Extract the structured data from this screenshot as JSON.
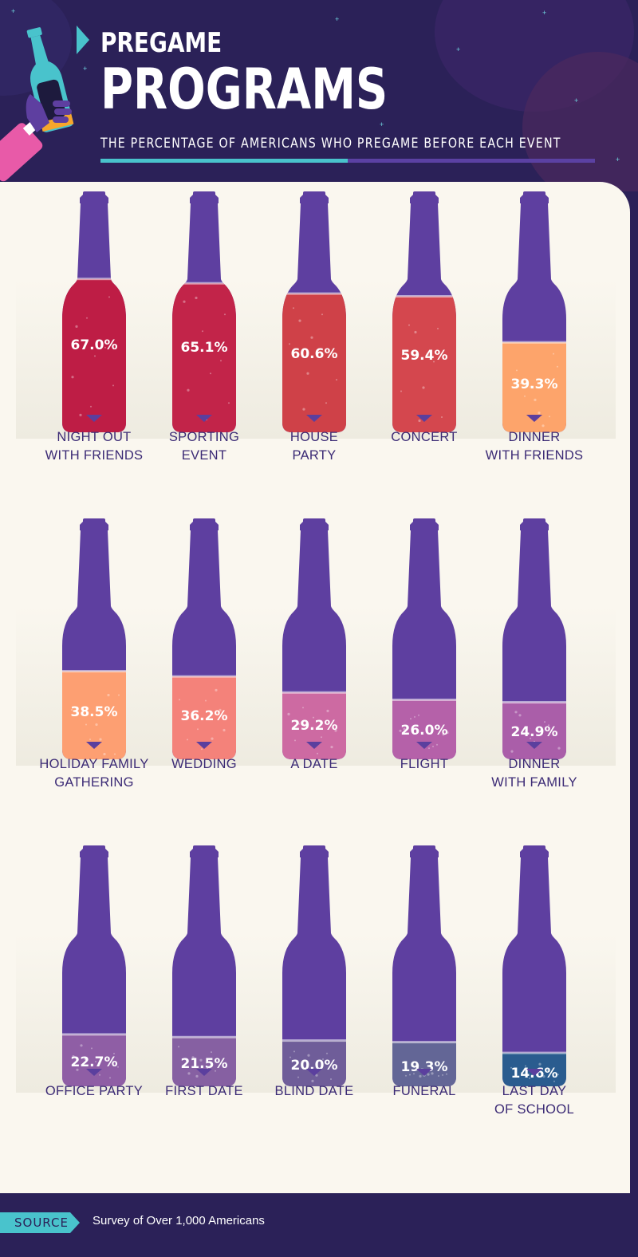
{
  "header": {
    "title_small": "PREGAME",
    "title_big": "PROGRAMS",
    "subtitle": "THE PERCENTAGE OF AMERICANS WHO PREGAME BEFORE EACH EVENT"
  },
  "colors": {
    "background": "#2b2158",
    "panel": "#faf7ef",
    "bottle": "#5e3fa0",
    "accent_teal": "#49c3cc",
    "label_text": "#3b2a75"
  },
  "chart_data": {
    "type": "bar",
    "title": "PREGAME PROGRAMS",
    "subtitle": "THE PERCENTAGE OF AMERICANS WHO PREGAME BEFORE EACH EVENT",
    "xlabel": "",
    "ylabel": "",
    "ylim": [
      0,
      100
    ],
    "categories": [
      "NIGHT OUT\nWITH FRIENDS",
      "SPORTING\nEVENT",
      "HOUSE\nPARTY",
      "CONCERT",
      "DINNER\nWITH FRIENDS",
      "HOLIDAY FAMILY\nGATHERING",
      "WEDDING",
      "A DATE",
      "FLIGHT",
      "DINNER\nWITH FAMILY",
      "OFFICE PARTY",
      "FIRST DATE",
      "BLIND DATE",
      "FUNERAL",
      "LAST DAY\nOF SCHOOL"
    ],
    "values": [
      67.0,
      65.1,
      60.6,
      59.4,
      39.3,
      38.5,
      36.2,
      29.2,
      26.0,
      24.9,
      22.7,
      21.5,
      20.0,
      19.3,
      14.6
    ],
    "value_labels": [
      "67.0%",
      "65.1%",
      "60.6%",
      "59.4%",
      "39.3%",
      "38.5%",
      "36.2%",
      "29.2%",
      "26.0%",
      "24.9%",
      "22.7%",
      "21.5%",
      "20.0%",
      "19.3%",
      "14.6%"
    ],
    "fill_colors": [
      "#be1d45",
      "#c22449",
      "#cf4148",
      "#d4474e",
      "#fda46b",
      "#fd9f72",
      "#f4827a",
      "#cd6aa2",
      "#b561a9",
      "#aa5ea9",
      "#8f5ea5",
      "#8660a2",
      "#6f5d99",
      "#636696",
      "#2a5c8f"
    ]
  },
  "footer": {
    "source_label": "SOURCE",
    "source_text": "Survey of Over 1,000 Americans"
  }
}
